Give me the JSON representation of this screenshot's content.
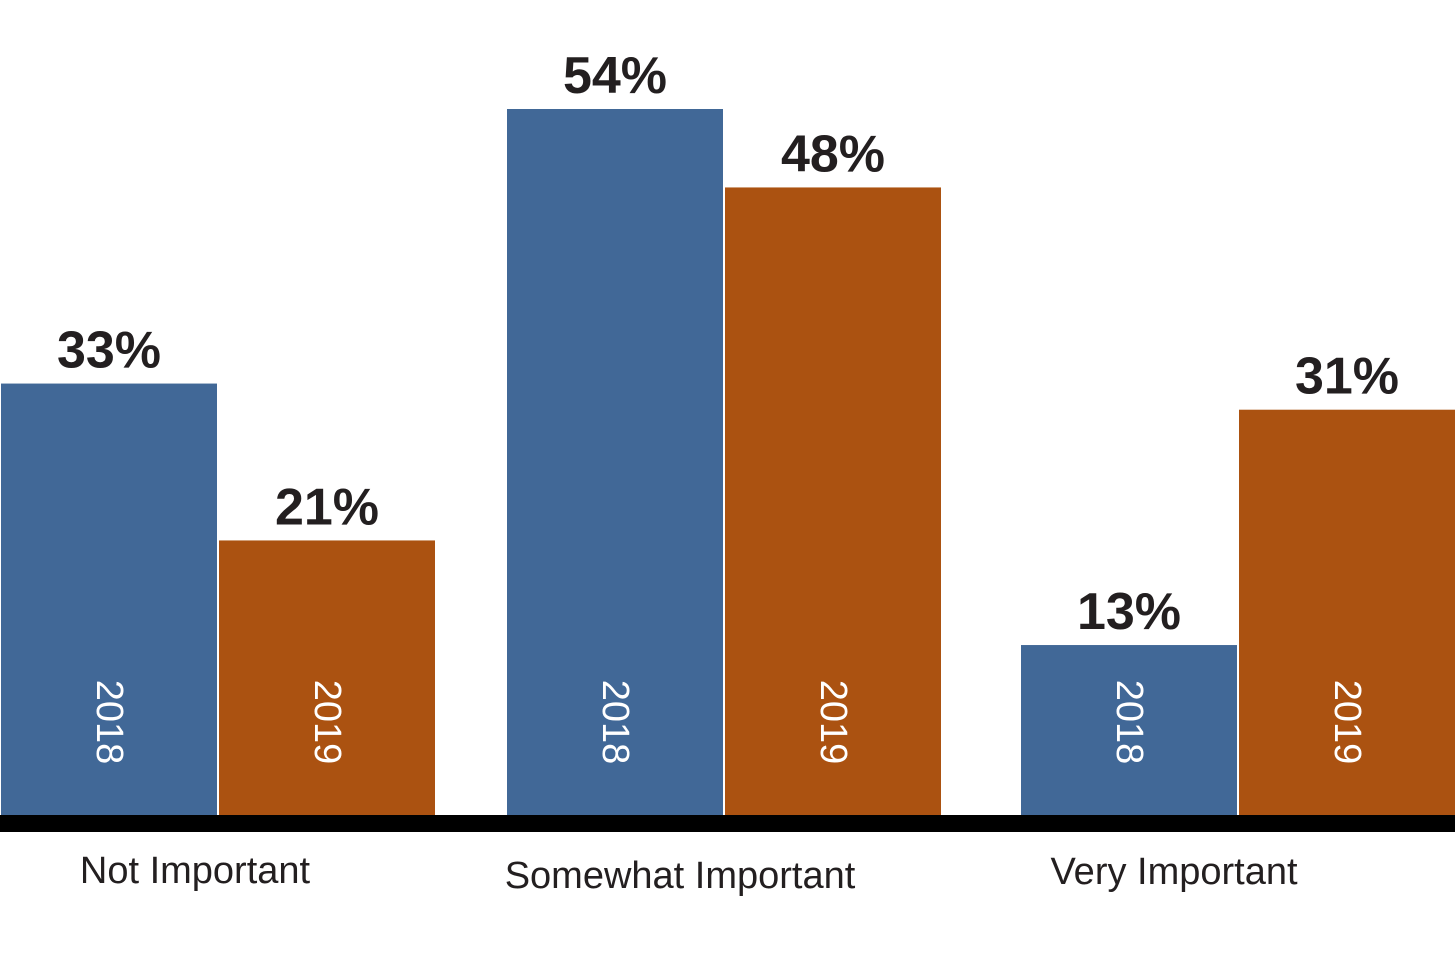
{
  "chart_data": {
    "type": "bar",
    "categories": [
      "Not Important",
      "Somewhat Important",
      "Very Important"
    ],
    "series": [
      {
        "name": "2018",
        "values": [
          33,
          54,
          13
        ],
        "labels": [
          "33%",
          "54%",
          "13%"
        ]
      },
      {
        "name": "2019",
        "values": [
          21,
          48,
          31
        ],
        "labels": [
          "21%",
          "48%",
          "31%"
        ]
      }
    ],
    "ylim": [
      0,
      54
    ],
    "grid": false,
    "legend": "none",
    "colors": {
      "2018": "#416897",
      "2019": "#ab5211",
      "baseline": "#000000"
    }
  }
}
